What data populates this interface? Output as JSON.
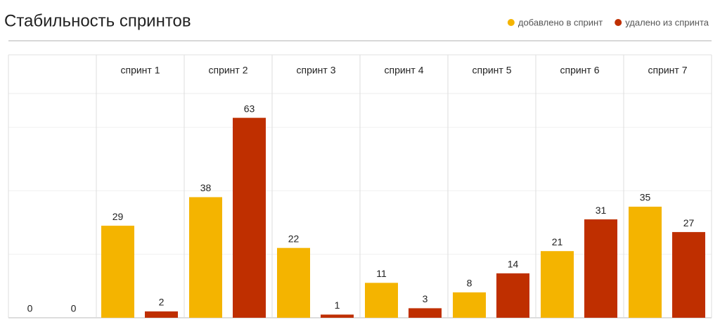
{
  "chart_data": {
    "type": "bar",
    "title": "Стабильность спринтов",
    "categories": [
      null,
      "спринт 1",
      "спринт 2",
      "спринт 3",
      "спринт 4",
      "спринт 5",
      "спринт 6",
      "спринт 7"
    ],
    "series": [
      {
        "name": "добавлено в спринт",
        "color": "#f4b400",
        "values": [
          0,
          29,
          38,
          22,
          11,
          8,
          21,
          35
        ]
      },
      {
        "name": "удалено из спринта",
        "color": "#bf2f00",
        "values": [
          0,
          2,
          63,
          1,
          3,
          14,
          31,
          27
        ]
      }
    ],
    "ylim": [
      0,
      70
    ],
    "yticks": [
      0,
      20,
      40,
      60
    ],
    "grid": true,
    "legend": "top-right"
  }
}
